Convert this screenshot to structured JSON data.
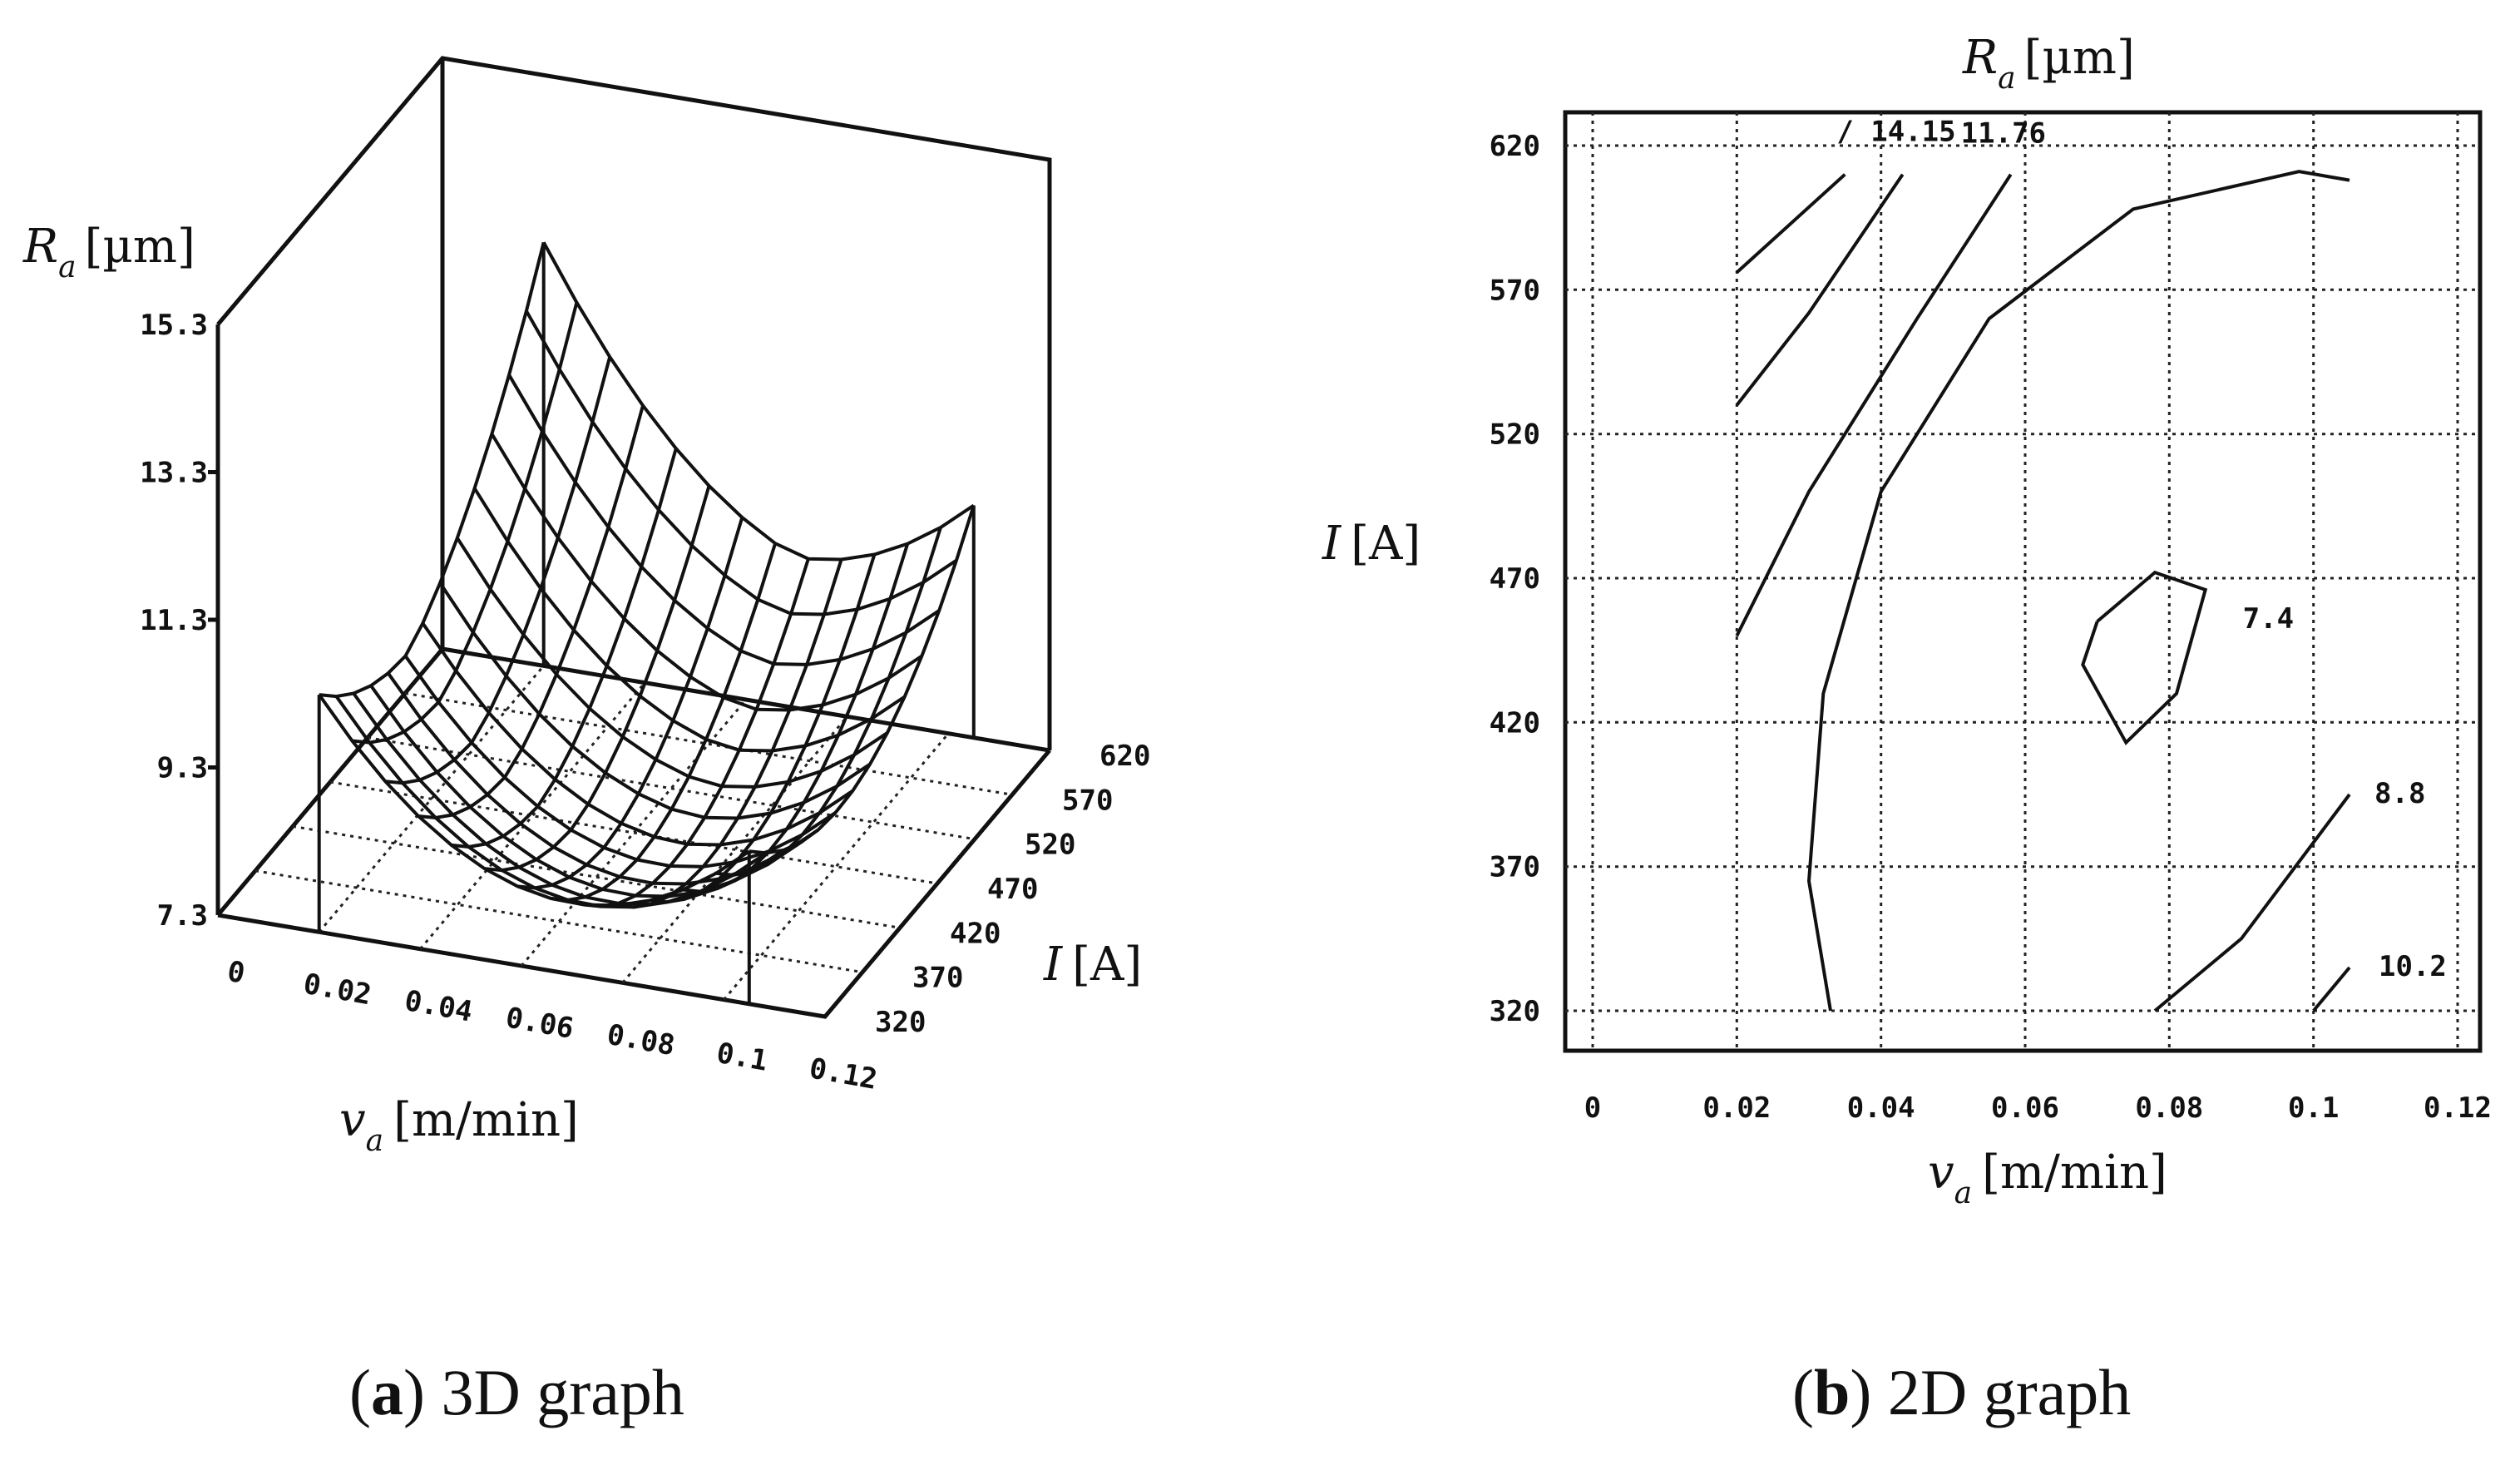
{
  "chart_data": [
    {
      "type": "surface",
      "caption_letter": "a",
      "caption_text": "3D graph",
      "zlabel": "R",
      "zlabel_sub": "a",
      "zlabel_unit": "[µm]",
      "xlabel": "v",
      "xlabel_sub": "a",
      "xlabel_unit": "[m/min]",
      "ylabel": "I",
      "ylabel_unit": "[A]",
      "z_ticks": [
        "15.3",
        "13.3",
        "11.3",
        "9.3",
        "7.3"
      ],
      "x_ticks": [
        "0",
        "0.02",
        "0.04",
        "0.06",
        "0.08",
        "0.1",
        "0.12"
      ],
      "y_ticks": [
        "320",
        "370",
        "420",
        "470",
        "520",
        "570",
        "620"
      ],
      "xlim": [
        0,
        0.12
      ],
      "ylim": [
        320,
        620
      ],
      "zlim": [
        7.3,
        15.3
      ],
      "surface_x_range": [
        0.02,
        0.105
      ],
      "surface_y_range": [
        320,
        620
      ],
      "corner_values": {
        "x_low_y_high": 14.8,
        "x_high_y_high": 9.0,
        "x_low_y_low": 9.2,
        "x_high_y_low": 9.1
      },
      "minimum": {
        "x": 0.07,
        "y": 440,
        "z": 7.4
      },
      "grid": true
    },
    {
      "type": "contour",
      "caption_letter": "b",
      "caption_text": "2D graph",
      "title": "R",
      "title_sub": "a",
      "title_unit": "[µm]",
      "xlabel": "v",
      "xlabel_sub": "a",
      "xlabel_unit": "[m/min]",
      "ylabel": "I",
      "ylabel_unit": "[A]",
      "x_ticks": [
        "0",
        "0.02",
        "0.04",
        "0.06",
        "0.08",
        "0.1",
        "0.12"
      ],
      "y_ticks": [
        "620",
        "570",
        "520",
        "470",
        "420",
        "370",
        "320"
      ],
      "xlim": [
        0,
        0.12
      ],
      "ylim": [
        320,
        620
      ],
      "grid": true,
      "contours": [
        {
          "label": "/ 14.15",
          "points": [
            [
              0.02,
              576
            ],
            [
              0.035,
              610
            ]
          ]
        },
        {
          "label": "",
          "points": [
            [
              0.02,
              530
            ],
            [
              0.03,
              562
            ],
            [
              0.043,
              610
            ]
          ]
        },
        {
          "label": "11.76",
          "points": [
            [
              0.02,
              450
            ],
            [
              0.03,
              500
            ],
            [
              0.045,
              560
            ],
            [
              0.058,
              610
            ]
          ]
        },
        {
          "label": "",
          "points": [
            [
              0.033,
              320
            ],
            [
              0.03,
              365
            ],
            [
              0.032,
              430
            ],
            [
              0.04,
              500
            ],
            [
              0.055,
              560
            ],
            [
              0.075,
              598
            ],
            [
              0.098,
              611
            ],
            [
              0.105,
              608
            ]
          ]
        },
        {
          "label": "7.4",
          "points": [
            [
              0.07,
              455
            ],
            [
              0.078,
              472
            ],
            [
              0.085,
              466
            ],
            [
              0.081,
              430
            ],
            [
              0.074,
              413
            ],
            [
              0.068,
              440
            ],
            [
              0.07,
              455
            ]
          ]
        },
        {
          "label": "8.8",
          "points": [
            [
              0.078,
              320
            ],
            [
              0.09,
              345
            ],
            [
              0.105,
              395
            ]
          ]
        },
        {
          "label": "10.2",
          "points": [
            [
              0.1,
              320
            ],
            [
              0.105,
              335
            ]
          ]
        }
      ]
    }
  ]
}
